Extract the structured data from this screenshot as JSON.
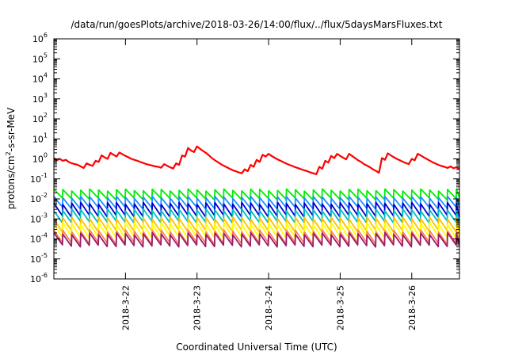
{
  "chart_data": {
    "type": "line",
    "title": "/data/run/goesPlots/archive/2018-03-26/14:00/flux/../flux/5daysMarsFluxes.txt",
    "xlabel": "Coordinated Universal Time (UTC)",
    "ylabel": {
      "base": "protons/cm",
      "sup": "2",
      "rest": "-s-sr-MeV"
    },
    "yscale": "log",
    "ylim_exp": [
      -6,
      6
    ],
    "y_ticks": [
      {
        "base": "10",
        "exp": "6"
      },
      {
        "base": "10",
        "exp": "5"
      },
      {
        "base": "10",
        "exp": "4"
      },
      {
        "base": "10",
        "exp": "3"
      },
      {
        "base": "10",
        "exp": "2"
      },
      {
        "base": "10",
        "exp": "1"
      },
      {
        "base": "10",
        "exp": "0"
      },
      {
        "base": "10",
        "exp": "-1"
      },
      {
        "base": "10",
        "exp": "-2"
      },
      {
        "base": "10",
        "exp": "-3"
      },
      {
        "base": "10",
        "exp": "-4"
      },
      {
        "base": "10",
        "exp": "-5"
      },
      {
        "base": "10",
        "exp": "-6"
      }
    ],
    "xlim": [
      "2018-03-21 00:00",
      "2018-03-26 16:00"
    ],
    "x_ticks": [
      {
        "date": "2018-03-22 00:00",
        "label": "2018-3-22"
      },
      {
        "date": "2018-03-23 00:00",
        "label": "2018-3-23"
      },
      {
        "date": "2018-03-24 00:00",
        "label": "2018-3-24"
      },
      {
        "date": "2018-03-25 00:00",
        "label": "2018-3-25"
      },
      {
        "date": "2018-03-26 00:00",
        "label": "2018-3-26"
      }
    ],
    "grid": false,
    "legend": "none",
    "series": [
      {
        "color": "#ff0000",
        "width": 2.2,
        "values": [
          [
            "2018-03-21 00:00",
            1.1
          ],
          [
            "2018-03-21 01:00",
            0.85
          ],
          [
            "2018-03-21 02:00",
            1.0
          ],
          [
            "2018-03-21 03:00",
            0.8
          ],
          [
            "2018-03-21 04:00",
            0.9
          ],
          [
            "2018-03-21 05:00",
            0.7
          ],
          [
            "2018-03-21 06:00",
            0.6
          ],
          [
            "2018-03-21 07:00",
            0.55
          ],
          [
            "2018-03-21 08:00",
            0.5
          ],
          [
            "2018-03-21 09:00",
            0.42
          ],
          [
            "2018-03-21 10:00",
            0.35
          ],
          [
            "2018-03-21 11:00",
            0.6
          ],
          [
            "2018-03-21 12:00",
            0.5
          ],
          [
            "2018-03-21 13:00",
            0.45
          ],
          [
            "2018-03-21 14:00",
            0.8
          ],
          [
            "2018-03-21 15:00",
            0.7
          ],
          [
            "2018-03-21 16:00",
            1.5
          ],
          [
            "2018-03-21 17:00",
            1.2
          ],
          [
            "2018-03-21 18:00",
            1.0
          ],
          [
            "2018-03-21 19:00",
            2.0
          ],
          [
            "2018-03-21 20:00",
            1.6
          ],
          [
            "2018-03-21 21:00",
            1.3
          ],
          [
            "2018-03-21 22:00",
            2.1
          ],
          [
            "2018-03-21 23:00",
            1.7
          ],
          [
            "2018-03-22 00:00",
            1.4
          ],
          [
            "2018-03-22 01:00",
            1.2
          ],
          [
            "2018-03-22 02:00",
            1.0
          ],
          [
            "2018-03-22 03:00",
            0.9
          ],
          [
            "2018-03-22 04:00",
            0.8
          ],
          [
            "2018-03-22 05:00",
            0.7
          ],
          [
            "2018-03-22 06:00",
            0.62
          ],
          [
            "2018-03-22 07:00",
            0.55
          ],
          [
            "2018-03-22 08:00",
            0.5
          ],
          [
            "2018-03-22 09:00",
            0.46
          ],
          [
            "2018-03-22 10:00",
            0.42
          ],
          [
            "2018-03-22 11:00",
            0.4
          ],
          [
            "2018-03-22 12:00",
            0.36
          ],
          [
            "2018-03-22 13:00",
            0.55
          ],
          [
            "2018-03-22 14:00",
            0.45
          ],
          [
            "2018-03-22 15:00",
            0.38
          ],
          [
            "2018-03-22 16:00",
            0.33
          ],
          [
            "2018-03-22 17:00",
            0.6
          ],
          [
            "2018-03-22 18:00",
            0.5
          ],
          [
            "2018-03-22 19:00",
            1.5
          ],
          [
            "2018-03-22 20:00",
            1.3
          ],
          [
            "2018-03-22 21:00",
            3.5
          ],
          [
            "2018-03-22 22:00",
            2.6
          ],
          [
            "2018-03-22 23:00",
            2.2
          ],
          [
            "2018-03-23 00:00",
            4.2
          ],
          [
            "2018-03-23 01:00",
            3.2
          ],
          [
            "2018-03-23 02:00",
            2.5
          ],
          [
            "2018-03-23 03:00",
            2.0
          ],
          [
            "2018-03-23 04:00",
            1.5
          ],
          [
            "2018-03-23 05:00",
            1.1
          ],
          [
            "2018-03-23 06:00",
            0.85
          ],
          [
            "2018-03-23 07:00",
            0.68
          ],
          [
            "2018-03-23 08:00",
            0.55
          ],
          [
            "2018-03-23 09:00",
            0.45
          ],
          [
            "2018-03-23 10:00",
            0.38
          ],
          [
            "2018-03-23 11:00",
            0.32
          ],
          [
            "2018-03-23 12:00",
            0.27
          ],
          [
            "2018-03-23 13:00",
            0.24
          ],
          [
            "2018-03-23 14:00",
            0.21
          ],
          [
            "2018-03-23 15:00",
            0.19
          ],
          [
            "2018-03-23 16:00",
            0.3
          ],
          [
            "2018-03-23 17:00",
            0.24
          ],
          [
            "2018-03-23 18:00",
            0.5
          ],
          [
            "2018-03-23 19:00",
            0.4
          ],
          [
            "2018-03-23 20:00",
            0.9
          ],
          [
            "2018-03-23 21:00",
            0.7
          ],
          [
            "2018-03-23 22:00",
            1.6
          ],
          [
            "2018-03-23 23:00",
            1.3
          ],
          [
            "2018-03-24 00:00",
            1.8
          ],
          [
            "2018-03-24 01:00",
            1.4
          ],
          [
            "2018-03-24 02:00",
            1.15
          ],
          [
            "2018-03-24 03:00",
            0.95
          ],
          [
            "2018-03-24 04:00",
            0.8
          ],
          [
            "2018-03-24 05:00",
            0.68
          ],
          [
            "2018-03-24 06:00",
            0.58
          ],
          [
            "2018-03-24 07:00",
            0.5
          ],
          [
            "2018-03-24 08:00",
            0.44
          ],
          [
            "2018-03-24 09:00",
            0.38
          ],
          [
            "2018-03-24 10:00",
            0.34
          ],
          [
            "2018-03-24 11:00",
            0.3
          ],
          [
            "2018-03-24 12:00",
            0.27
          ],
          [
            "2018-03-24 13:00",
            0.24
          ],
          [
            "2018-03-24 14:00",
            0.21
          ],
          [
            "2018-03-24 15:00",
            0.19
          ],
          [
            "2018-03-24 16:00",
            0.17
          ],
          [
            "2018-03-24 17:00",
            0.4
          ],
          [
            "2018-03-24 18:00",
            0.32
          ],
          [
            "2018-03-24 19:00",
            0.8
          ],
          [
            "2018-03-24 20:00",
            0.65
          ],
          [
            "2018-03-24 21:00",
            1.4
          ],
          [
            "2018-03-24 22:00",
            1.1
          ],
          [
            "2018-03-24 23:00",
            1.8
          ],
          [
            "2018-03-25 00:00",
            1.4
          ],
          [
            "2018-03-25 01:00",
            1.15
          ],
          [
            "2018-03-25 02:00",
            0.95
          ],
          [
            "2018-03-25 03:00",
            1.8
          ],
          [
            "2018-03-25 04:00",
            1.4
          ],
          [
            "2018-03-25 05:00",
            1.1
          ],
          [
            "2018-03-25 06:00",
            0.85
          ],
          [
            "2018-03-25 07:00",
            0.7
          ],
          [
            "2018-03-25 08:00",
            0.55
          ],
          [
            "2018-03-25 09:00",
            0.46
          ],
          [
            "2018-03-25 10:00",
            0.38
          ],
          [
            "2018-03-25 11:00",
            0.3
          ],
          [
            "2018-03-25 12:00",
            0.25
          ],
          [
            "2018-03-25 13:00",
            0.2
          ],
          [
            "2018-03-25 14:00",
            1.1
          ],
          [
            "2018-03-25 15:00",
            0.9
          ],
          [
            "2018-03-25 16:00",
            1.9
          ],
          [
            "2018-03-25 17:00",
            1.5
          ],
          [
            "2018-03-25 18:00",
            1.2
          ],
          [
            "2018-03-25 19:00",
            1.0
          ],
          [
            "2018-03-25 20:00",
            0.85
          ],
          [
            "2018-03-25 21:00",
            0.72
          ],
          [
            "2018-03-25 22:00",
            0.62
          ],
          [
            "2018-03-25 23:00",
            0.55
          ],
          [
            "2018-03-26 00:00",
            1.0
          ],
          [
            "2018-03-26 01:00",
            0.85
          ],
          [
            "2018-03-26 02:00",
            1.8
          ],
          [
            "2018-03-26 03:00",
            1.5
          ],
          [
            "2018-03-26 04:00",
            1.2
          ],
          [
            "2018-03-26 05:00",
            1.0
          ],
          [
            "2018-03-26 06:00",
            0.82
          ],
          [
            "2018-03-26 07:00",
            0.68
          ],
          [
            "2018-03-26 08:00",
            0.58
          ],
          [
            "2018-03-26 09:00",
            0.5
          ],
          [
            "2018-03-26 10:00",
            0.44
          ],
          [
            "2018-03-26 11:00",
            0.4
          ],
          [
            "2018-03-26 12:00",
            0.35
          ],
          [
            "2018-03-26 13:00",
            0.42
          ],
          [
            "2018-03-26 14:00",
            0.34
          ],
          [
            "2018-03-26 15:00",
            0.38
          ],
          [
            "2018-03-26 16:00",
            0.32
          ]
        ]
      },
      {
        "color": "#00ee00",
        "width": 1.8,
        "shape": "sawtooth",
        "peak": 0.028,
        "base": 0.01,
        "step_hours": 3
      },
      {
        "color": "#1e90ff",
        "width": 1.8,
        "shape": "sawtooth",
        "peak": 0.012,
        "base": 0.0035,
        "step_hours": 3
      },
      {
        "color": "#0000cd",
        "width": 1.8,
        "shape": "sawtooth",
        "peak": 0.006,
        "base": 0.0014,
        "step_hours": 3
      },
      {
        "color": "#00c0c0",
        "width": 1.8,
        "shape": "sawtooth",
        "peak": 0.0028,
        "base": 0.0007,
        "step_hours": 3
      },
      {
        "color": "#ffc000",
        "width": 1.8,
        "shape": "sawtooth",
        "peak": 0.0011,
        "base": 0.00025,
        "step_hours": 3
      },
      {
        "color": "#ffff00",
        "width": 1.8,
        "shape": "sawtooth",
        "peak": 0.0006,
        "base": 0.00012,
        "step_hours": 3
      },
      {
        "color": "#ff7f50",
        "width": 1.8,
        "shape": "sawtooth",
        "peak": 0.00025,
        "base": 6e-05,
        "step_hours": 3
      },
      {
        "color": "#9b1b6f",
        "width": 1.8,
        "shape": "sawtooth",
        "peak": 0.00018,
        "base": 4.5e-05,
        "step_hours": 3
      }
    ]
  }
}
